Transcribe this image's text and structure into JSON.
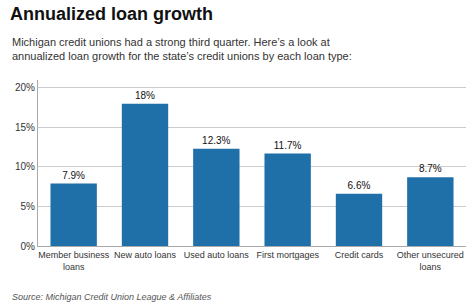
{
  "chart_data": {
    "type": "bar",
    "title": "Annualized loan growth",
    "subtitle": "Michigan credit unions had a strong third quarter. Here’s a look at\nannualized loan growth for the state’s credit unions by each loan type:",
    "annotations": [
      "Source: Michigan Credit Union League & Affiliates"
    ],
    "categories": [
      "Member business\nloans",
      "New auto loans",
      "Used auto loans",
      "First mortgages",
      "Credit cards",
      "Other unsecured\nloans"
    ],
    "values": [
      7.9,
      18.0,
      12.3,
      11.7,
      6.6,
      8.7
    ],
    "value_labels": [
      "7.9%",
      "18%",
      "12.3%",
      "11.7%",
      "6.6%",
      "8.7%"
    ],
    "data_labels": true,
    "color": "#1f6fa8",
    "ylim": [
      0,
      21
    ],
    "yticks": [
      {
        "value": 0,
        "label": "0%"
      },
      {
        "value": 5,
        "label": "5%"
      },
      {
        "value": 10,
        "label": "10%"
      },
      {
        "value": 15,
        "label": "15%"
      },
      {
        "value": 20,
        "label": "20%"
      }
    ],
    "grid": true
  }
}
